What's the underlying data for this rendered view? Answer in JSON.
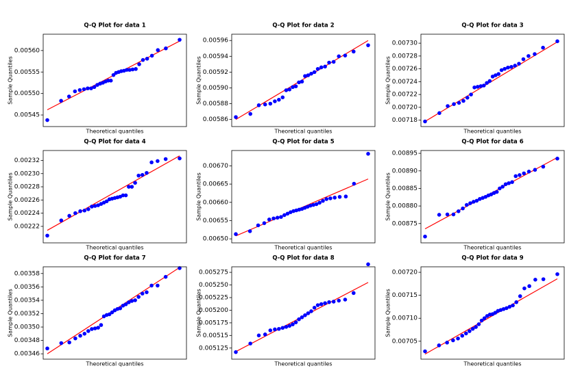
{
  "chart_data": [
    {
      "type": "qq",
      "title": "Q-Q Plot for data 1",
      "xlabel": "Theoretical quantiles",
      "ylabel": "Sample Quantiles",
      "color": "blue",
      "values": [
        0.005438,
        0.005483,
        0.005493,
        0.005505,
        0.005508,
        0.00551,
        0.005512,
        0.005512,
        0.005515,
        0.00552,
        0.005523,
        0.005525,
        0.005528,
        0.00553,
        0.00553,
        0.005543,
        0.005548,
        0.00555,
        0.005552,
        0.005553,
        0.005555,
        0.005555,
        0.005556,
        0.005557,
        0.005568,
        0.005578,
        0.005581,
        0.005588,
        0.005601,
        0.005605,
        0.005625
      ],
      "line": {
        "color": "red",
        "values": [
          0.005462,
          0.005622
        ]
      },
      "ylim": [
        0.005423,
        0.005638
      ],
      "yticks": [
        {
          "value": 0.00545,
          "label": "0.00545"
        },
        {
          "value": 0.0055,
          "label": "0.00550"
        },
        {
          "value": 0.00555,
          "label": "0.00555"
        },
        {
          "value": 0.0056,
          "label": "0.00560"
        }
      ]
    },
    {
      "type": "qq",
      "title": "Q-Q Plot for data 2",
      "xlabel": "Theoretical quantiles",
      "ylabel": "Sample Quantiles",
      "color": "blue",
      "values": [
        0.005863,
        0.005867,
        0.005878,
        0.005879,
        0.00588,
        0.005883,
        0.005885,
        0.005888,
        0.005897,
        0.005898,
        0.005901,
        0.005902,
        0.005907,
        0.005908,
        0.005915,
        0.005916,
        0.005918,
        0.00592,
        0.005924,
        0.005926,
        0.005927,
        0.005932,
        0.005933,
        0.00594,
        0.005941,
        0.005946,
        0.005954
      ],
      "line": {
        "color": "red",
        "values": [
          0.00586,
          0.00596
        ]
      },
      "ylim": [
        0.005851,
        0.005968
      ],
      "yticks": [
        {
          "value": 0.00586,
          "label": "0.00586"
        },
        {
          "value": 0.00588,
          "label": "0.00588"
        },
        {
          "value": 0.0059,
          "label": "0.00590"
        },
        {
          "value": 0.00592,
          "label": "0.00592"
        },
        {
          "value": 0.00594,
          "label": "0.00594"
        },
        {
          "value": 0.00596,
          "label": "0.00596"
        }
      ]
    },
    {
      "type": "qq",
      "title": "Q-Q Plot for data 3",
      "xlabel": "Theoretical quantiles",
      "ylabel": "Sample Quantiles",
      "color": "blue",
      "values": [
        0.007178,
        0.007191,
        0.007202,
        0.007205,
        0.007207,
        0.00721,
        0.007215,
        0.00722,
        0.007231,
        0.007232,
        0.007233,
        0.007234,
        0.007238,
        0.007241,
        0.007248,
        0.00725,
        0.007252,
        0.007258,
        0.00726,
        0.007262,
        0.007263,
        0.007265,
        0.007268,
        0.007275,
        0.00728,
        0.007283,
        0.007293,
        0.007303
      ],
      "line": {
        "color": "red",
        "values": [
          0.007178,
          0.007302
        ]
      },
      "ylim": [
        0.00717,
        0.007314
      ],
      "yticks": [
        {
          "value": 0.00718,
          "label": "0.00718"
        },
        {
          "value": 0.0072,
          "label": "0.00720"
        },
        {
          "value": 0.00722,
          "label": "0.00722"
        },
        {
          "value": 0.00724,
          "label": "0.00724"
        },
        {
          "value": 0.00726,
          "label": "0.00726"
        },
        {
          "value": 0.00728,
          "label": "0.00728"
        },
        {
          "value": 0.0073,
          "label": "0.00730"
        }
      ]
    },
    {
      "type": "qq",
      "title": "Q-Q Plot for data 4",
      "xlabel": "Theoretical quantiles",
      "ylabel": "Sample Quantiles",
      "color": "blue",
      "values": [
        0.002206,
        0.002229,
        0.002236,
        0.00224,
        0.002243,
        0.002244,
        0.002246,
        0.00225,
        0.002251,
        0.002252,
        0.002254,
        0.002256,
        0.002258,
        0.002261,
        0.002262,
        0.002263,
        0.002264,
        0.002265,
        0.002267,
        0.002267,
        0.00228,
        0.00228,
        0.002286,
        0.002297,
        0.002298,
        0.002301,
        0.002317,
        0.002319,
        0.002322,
        0.002323
      ],
      "line": {
        "color": "red",
        "values": [
          0.002214,
          0.002327
        ]
      },
      "ylim": [
        0.002195,
        0.002335
      ],
      "yticks": [
        {
          "value": 0.00222,
          "label": "0.00222"
        },
        {
          "value": 0.00224,
          "label": "0.00224"
        },
        {
          "value": 0.00226,
          "label": "0.00226"
        },
        {
          "value": 0.00228,
          "label": "0.00228"
        },
        {
          "value": 0.0023,
          "label": "0.00230"
        },
        {
          "value": 0.00232,
          "label": "0.00232"
        }
      ]
    },
    {
      "type": "qq",
      "title": "Q-Q Plot for data 5",
      "xlabel": "Theoretical quantiles",
      "ylabel": "Sample Quantiles",
      "color": "blue",
      "values": [
        0.006513,
        0.006521,
        0.006537,
        0.006543,
        0.006553,
        0.006556,
        0.006558,
        0.00656,
        0.006565,
        0.006569,
        0.006573,
        0.006576,
        0.006578,
        0.00658,
        0.006582,
        0.006585,
        0.006588,
        0.006591,
        0.006593,
        0.006595,
        0.006599,
        0.006604,
        0.006609,
        0.006611,
        0.006613,
        0.006615,
        0.006616,
        0.006651,
        0.006733
      ],
      "line": {
        "color": "red",
        "values": [
          0.006508,
          0.006664
        ]
      },
      "ylim": [
        0.006489,
        0.006742
      ],
      "yticks": [
        {
          "value": 0.0065,
          "label": "0.00650"
        },
        {
          "value": 0.00655,
          "label": "0.00655"
        },
        {
          "value": 0.0066,
          "label": "0.00660"
        },
        {
          "value": 0.00665,
          "label": "0.00665"
        },
        {
          "value": 0.0067,
          "label": "0.00670"
        }
      ]
    },
    {
      "type": "qq",
      "title": "Q-Q Plot for data 6",
      "xlabel": "Theoretical quantiles",
      "ylabel": "Sample Quantiles",
      "color": "blue",
      "values": [
        0.008713,
        0.008775,
        0.008776,
        0.008776,
        0.008785,
        0.008793,
        0.008803,
        0.008808,
        0.008812,
        0.008815,
        0.00882,
        0.008823,
        0.008826,
        0.00883,
        0.008833,
        0.008837,
        0.00884,
        0.00885,
        0.008855,
        0.008862,
        0.008865,
        0.008868,
        0.008885,
        0.008888,
        0.008893,
        0.008898,
        0.008903,
        0.008912,
        0.008935
      ],
      "line": {
        "color": "red",
        "values": [
          0.008735,
          0.008938
        ]
      },
      "ylim": [
        0.008695,
        0.008958
      ],
      "yticks": [
        {
          "value": 0.00875,
          "label": "0.00875"
        },
        {
          "value": 0.0088,
          "label": "0.00880"
        },
        {
          "value": 0.00885,
          "label": "0.00885"
        },
        {
          "value": 0.0089,
          "label": "0.00890"
        },
        {
          "value": 0.00895,
          "label": "0.00895"
        }
      ]
    },
    {
      "type": "qq",
      "title": "Q-Q Plot for data 7",
      "xlabel": "Theoretical quantiles",
      "ylabel": "Sample Quantiles",
      "color": "blue",
      "values": [
        0.003468,
        0.003476,
        0.003477,
        0.003483,
        0.003487,
        0.00349,
        0.003494,
        0.003497,
        0.003498,
        0.003499,
        0.003503,
        0.003516,
        0.003518,
        0.003519,
        0.003522,
        0.003525,
        0.003527,
        0.003528,
        0.003532,
        0.003534,
        0.003537,
        0.003539,
        0.00354,
        0.003545,
        0.00355,
        0.003552,
        0.003562,
        0.003562,
        0.003575,
        0.003588
      ],
      "line": {
        "color": "red",
        "values": [
          0.00346,
          0.003589
        ]
      },
      "ylim": [
        0.003452,
        0.00359
      ],
      "yticks": [
        {
          "value": 0.00346,
          "label": "0.00346"
        },
        {
          "value": 0.00348,
          "label": "0.00348"
        },
        {
          "value": 0.0035,
          "label": "0.00350"
        },
        {
          "value": 0.00352,
          "label": "0.00352"
        },
        {
          "value": 0.00354,
          "label": "0.00354"
        },
        {
          "value": 0.00356,
          "label": "0.00356"
        },
        {
          "value": 0.00358,
          "label": "0.00358"
        }
      ]
    },
    {
      "type": "qq",
      "title": "Q-Q Plot for data 8",
      "xlabel": "Theoretical quantiles",
      "ylabel": "Sample Quantiles",
      "color": "blue",
      "values": [
        0.005117,
        0.005134,
        0.00515,
        0.005152,
        0.00516,
        0.005162,
        0.005163,
        0.005165,
        0.005167,
        0.005169,
        0.005172,
        0.005176,
        0.005182,
        0.005186,
        0.00519,
        0.005194,
        0.005198,
        0.005205,
        0.00521,
        0.005212,
        0.005214,
        0.005216,
        0.005217,
        0.005219,
        0.005221,
        0.005234,
        0.005291
      ],
      "line": {
        "color": "red",
        "values": [
          0.005118,
          0.005255
        ]
      },
      "ylim": [
        0.005103,
        0.005286
      ],
      "yticks": [
        0.005125,
        0.00515,
        0.005175,
        {
          "value": 0.0052,
          "label": "0.005200"
        },
        0.005225,
        {
          "value": 0.00525,
          "label": "0.005250"
        },
        0.005275
      ]
    },
    {
      "type": "qq",
      "title": "Q-Q Plot for data 9",
      "xlabel": "Theoretical quantiles",
      "ylabel": "Sample Quantiles",
      "color": "blue",
      "values": [
        0.007028,
        0.007041,
        0.007047,
        0.007052,
        0.007056,
        0.007062,
        0.007067,
        0.007072,
        0.007077,
        0.007081,
        0.007087,
        0.007095,
        0.0071,
        0.007105,
        0.007108,
        0.007109,
        0.007112,
        0.007116,
        0.007118,
        0.00712,
        0.007122,
        0.007125,
        0.007128,
        0.007135,
        0.007148,
        0.007165,
        0.00717,
        0.007184,
        0.007185,
        0.007196
      ],
      "line": {
        "color": "red",
        "values": [
          0.007022,
          0.007186
        ]
      },
      "ylim": [
        0.007011,
        0.007212
      ],
      "yticks": [
        {
          "value": 0.00705,
          "label": "0.00705"
        },
        {
          "value": 0.0071,
          "label": "0.00710"
        },
        {
          "value": 0.00715,
          "label": "0.00715"
        },
        {
          "value": 0.0072,
          "label": "0.00720"
        }
      ]
    }
  ]
}
